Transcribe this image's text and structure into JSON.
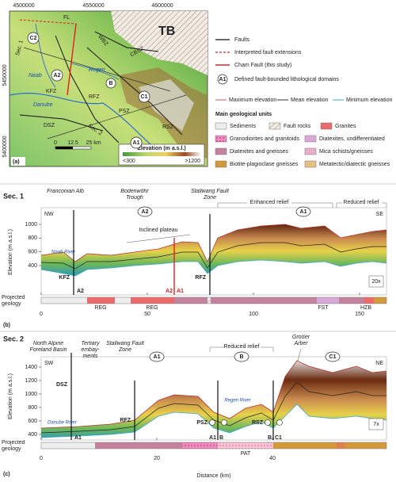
{
  "map": {
    "panel": "(a)",
    "coords_top": [
      "4500000",
      "4550000",
      "4600000"
    ],
    "coords_left": [
      "5450000",
      "5400000"
    ],
    "labels": [
      "TB",
      "C2",
      "A2",
      "B",
      "C1",
      "A1",
      "Sec. 1",
      "Sec. 2",
      "Danube",
      "Regen",
      "Naab",
      "FL",
      "KFZ",
      "RFZ",
      "PSZ",
      "RSZ",
      "DSZ",
      "WBZ",
      "CBSZ"
    ],
    "scale": [
      "0",
      "12.5",
      "25 km"
    ],
    "elevation_legend": {
      "title": "Elevation (m a.s.l.)",
      "min": "<300",
      "max": ">1200"
    }
  },
  "legend": {
    "lines": [
      "Faults",
      "Interpreted fault extensions",
      "Cham Fault (this study)"
    ],
    "domain_symbol": "A1",
    "domain_text": "Defined fault-bounded lithological domains",
    "elevation": [
      "Maximum elevation",
      "Mean elevation",
      "Minimum elevation"
    ],
    "units_title": "Main geological units",
    "units": [
      "Sediments",
      "Fault rocks",
      "Granites",
      "Granodiorites and granitoids",
      "Diatexites, undifferentiated",
      "Diatexites and gneisses",
      "Mica schists/gneisses",
      "Biotite-plagioclase gneisses",
      "Metatectic/diatectic gneisses"
    ]
  },
  "sec1": {
    "title": "Sec. 1",
    "left": "NW",
    "right": "SE",
    "regions": [
      "Franconian Alb",
      "Bodenwöhr Trough",
      "Stallwang Fault Zone",
      "Enhanced relief",
      "Reduced relief"
    ],
    "domains": [
      "A2",
      "A1"
    ],
    "annotation": "Inclined plateau",
    "river": "Naab River",
    "faults": [
      "KFZ",
      "RFZ"
    ],
    "boundaries": [
      "A2",
      "A2",
      "A1"
    ],
    "geology_labels": [
      "REG",
      "REG",
      "FST",
      "HZB"
    ],
    "geology_title": "Projected geology",
    "ylabel": "Elevation (m a.s.l.)",
    "exaggeration": "20x",
    "panel": "(b)",
    "xticks": [
      0,
      50,
      100,
      150
    ],
    "yticks": [
      400,
      600,
      800,
      1000
    ]
  },
  "sec2": {
    "title": "Sec. 2",
    "left": "SW",
    "right": "NE",
    "regions": [
      "North Alpine Foreland Basin",
      "Tertiary embay-ments",
      "Stallwang Fault Zone",
      "Reduced relief",
      "Großer Arber"
    ],
    "domains": [
      "A1",
      "B",
      "C1"
    ],
    "rivers": [
      "Danube River",
      "Regen River"
    ],
    "faults": [
      "DSZ",
      "RFZ",
      "PSZ",
      "RSZ"
    ],
    "boundaries": [
      "A1",
      "A1",
      "B",
      "B",
      "C1"
    ],
    "geology_labels": [
      "PAT"
    ],
    "geology_title": "Projected geology",
    "ylabel": "Elevation (m a.s.l.)",
    "exaggeration": "7x",
    "xlabel": "Distance (km)",
    "panel": "(c)",
    "xticks": [
      0,
      20,
      40
    ],
    "yticks": [
      400,
      600,
      800,
      1000,
      1200,
      1400
    ]
  }
}
